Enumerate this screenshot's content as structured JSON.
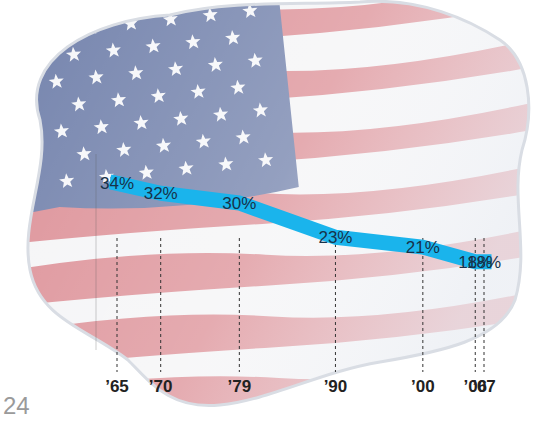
{
  "chart_data": {
    "type": "line",
    "x": [
      1965,
      1970,
      1979,
      1990,
      2000,
      2006,
      2007
    ],
    "values": [
      34,
      32,
      30,
      23,
      21,
      18,
      18
    ],
    "value_labels": [
      "34%",
      "32%",
      "30%",
      "23%",
      "21%",
      "18%",
      "18%"
    ],
    "data_labels": true,
    "xlim": [
      1965,
      2007
    ],
    "xticks": [
      {
        "value": 1965,
        "label": "’65"
      },
      {
        "value": 1970,
        "label": "’70"
      },
      {
        "value": 1979,
        "label": "’79"
      },
      {
        "value": 1990,
        "label": "’90"
      },
      {
        "value": 2000,
        "label": "’00"
      },
      {
        "value": 2006,
        "label": "’06"
      },
      {
        "value": 2007,
        "label": "’07"
      }
    ],
    "ylim": [
      0,
      40
    ],
    "tick_labels": "x",
    "color": "#1ab4ec",
    "annotations": [
      "24"
    ]
  }
}
